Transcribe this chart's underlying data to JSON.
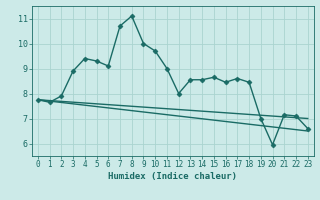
{
  "title": "",
  "xlabel": "Humidex (Indice chaleur)",
  "ylabel": "",
  "bg_color": "#cceae8",
  "grid_color": "#aad4d0",
  "line_color": "#1a6b65",
  "xlim": [
    -0.5,
    23.5
  ],
  "ylim": [
    5.5,
    11.5
  ],
  "xticks": [
    0,
    1,
    2,
    3,
    4,
    5,
    6,
    7,
    8,
    9,
    10,
    11,
    12,
    13,
    14,
    15,
    16,
    17,
    18,
    19,
    20,
    21,
    22,
    23
  ],
  "yticks": [
    6,
    7,
    8,
    9,
    10,
    11
  ],
  "main_line_x": [
    0,
    1,
    2,
    3,
    4,
    5,
    6,
    7,
    8,
    9,
    10,
    11,
    12,
    13,
    14,
    15,
    16,
    17,
    18,
    19,
    20,
    21,
    22,
    23
  ],
  "main_line_y": [
    7.75,
    7.65,
    7.9,
    8.9,
    9.4,
    9.3,
    9.1,
    10.7,
    11.1,
    10.0,
    9.7,
    9.0,
    8.0,
    8.55,
    8.55,
    8.65,
    8.45,
    8.6,
    8.45,
    7.0,
    5.95,
    7.15,
    7.1,
    6.6
  ],
  "trend1_x": [
    0,
    23
  ],
  "trend1_y": [
    7.75,
    7.0
  ],
  "trend2_x": [
    0,
    23
  ],
  "trend2_y": [
    7.75,
    6.5
  ],
  "marker_size": 2.5,
  "line_width": 1.0,
  "xlabel_fontsize": 6.5,
  "tick_fontsize": 5.5
}
